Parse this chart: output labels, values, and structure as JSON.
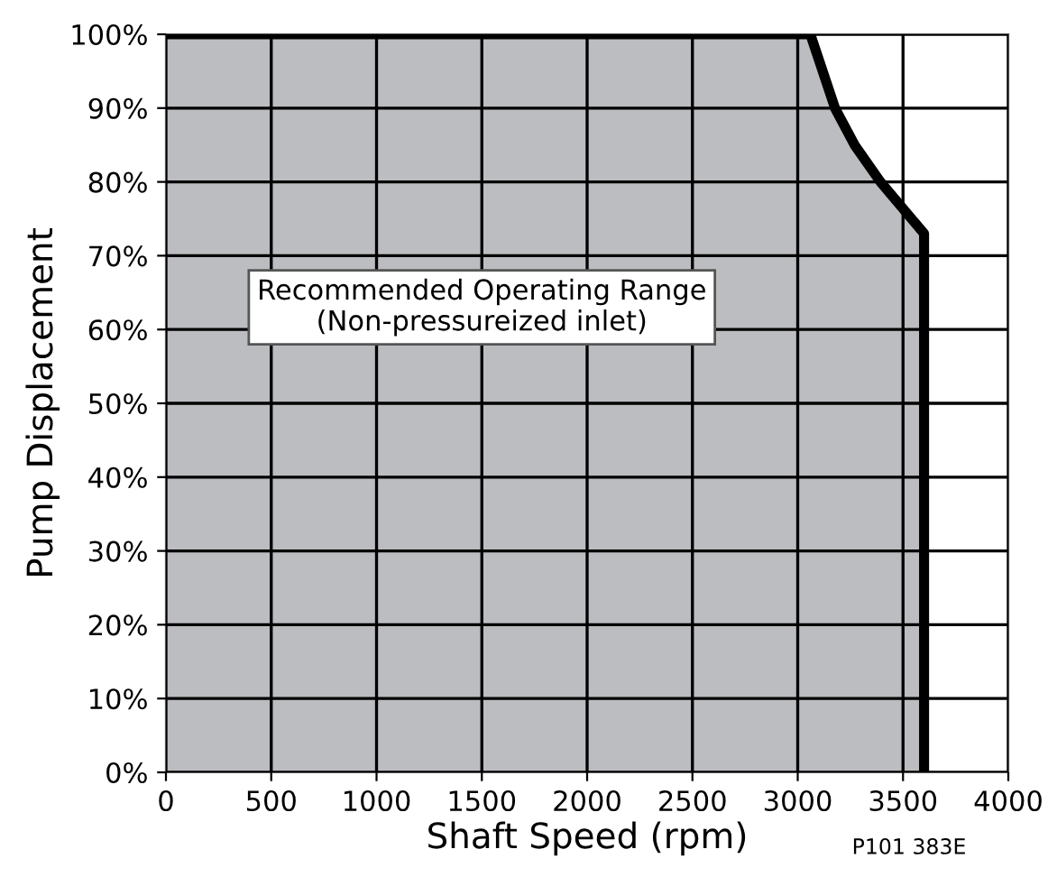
{
  "chart_data": {
    "type": "area",
    "xlabel": "Shaft Speed (rpm)",
    "ylabel": "Pump Displacement",
    "series": [
      {
        "color": "#bcbdc0",
        "x": [
          0,
          3060,
          3177,
          3270,
          3393,
          3600,
          3600
        ],
        "values": [
          100,
          100,
          90,
          85,
          80,
          73,
          0
        ]
      }
    ],
    "xlim": [
      0,
      4000
    ],
    "xticks": [
      0,
      500,
      1000,
      1500,
      2000,
      2500,
      3000,
      3500,
      4000
    ],
    "ylim": [
      0,
      100
    ],
    "yticks": [
      {
        "value": 0,
        "label": "0%"
      },
      {
        "value": 10,
        "label": "10%"
      },
      {
        "value": 20,
        "label": "20%"
      },
      {
        "value": 30,
        "label": "30%"
      },
      {
        "value": 40,
        "label": "40%"
      },
      {
        "value": 50,
        "label": "50%"
      },
      {
        "value": 60,
        "label": "60%"
      },
      {
        "value": 70,
        "label": "70%"
      },
      {
        "value": 80,
        "label": "80%"
      },
      {
        "value": 90,
        "label": "90%"
      },
      {
        "value": 100,
        "label": "100%"
      }
    ],
    "grid": true,
    "annotations": [
      "Recommended Operating Range\n(Non-pressureized inlet)",
      "P101 383E"
    ]
  }
}
